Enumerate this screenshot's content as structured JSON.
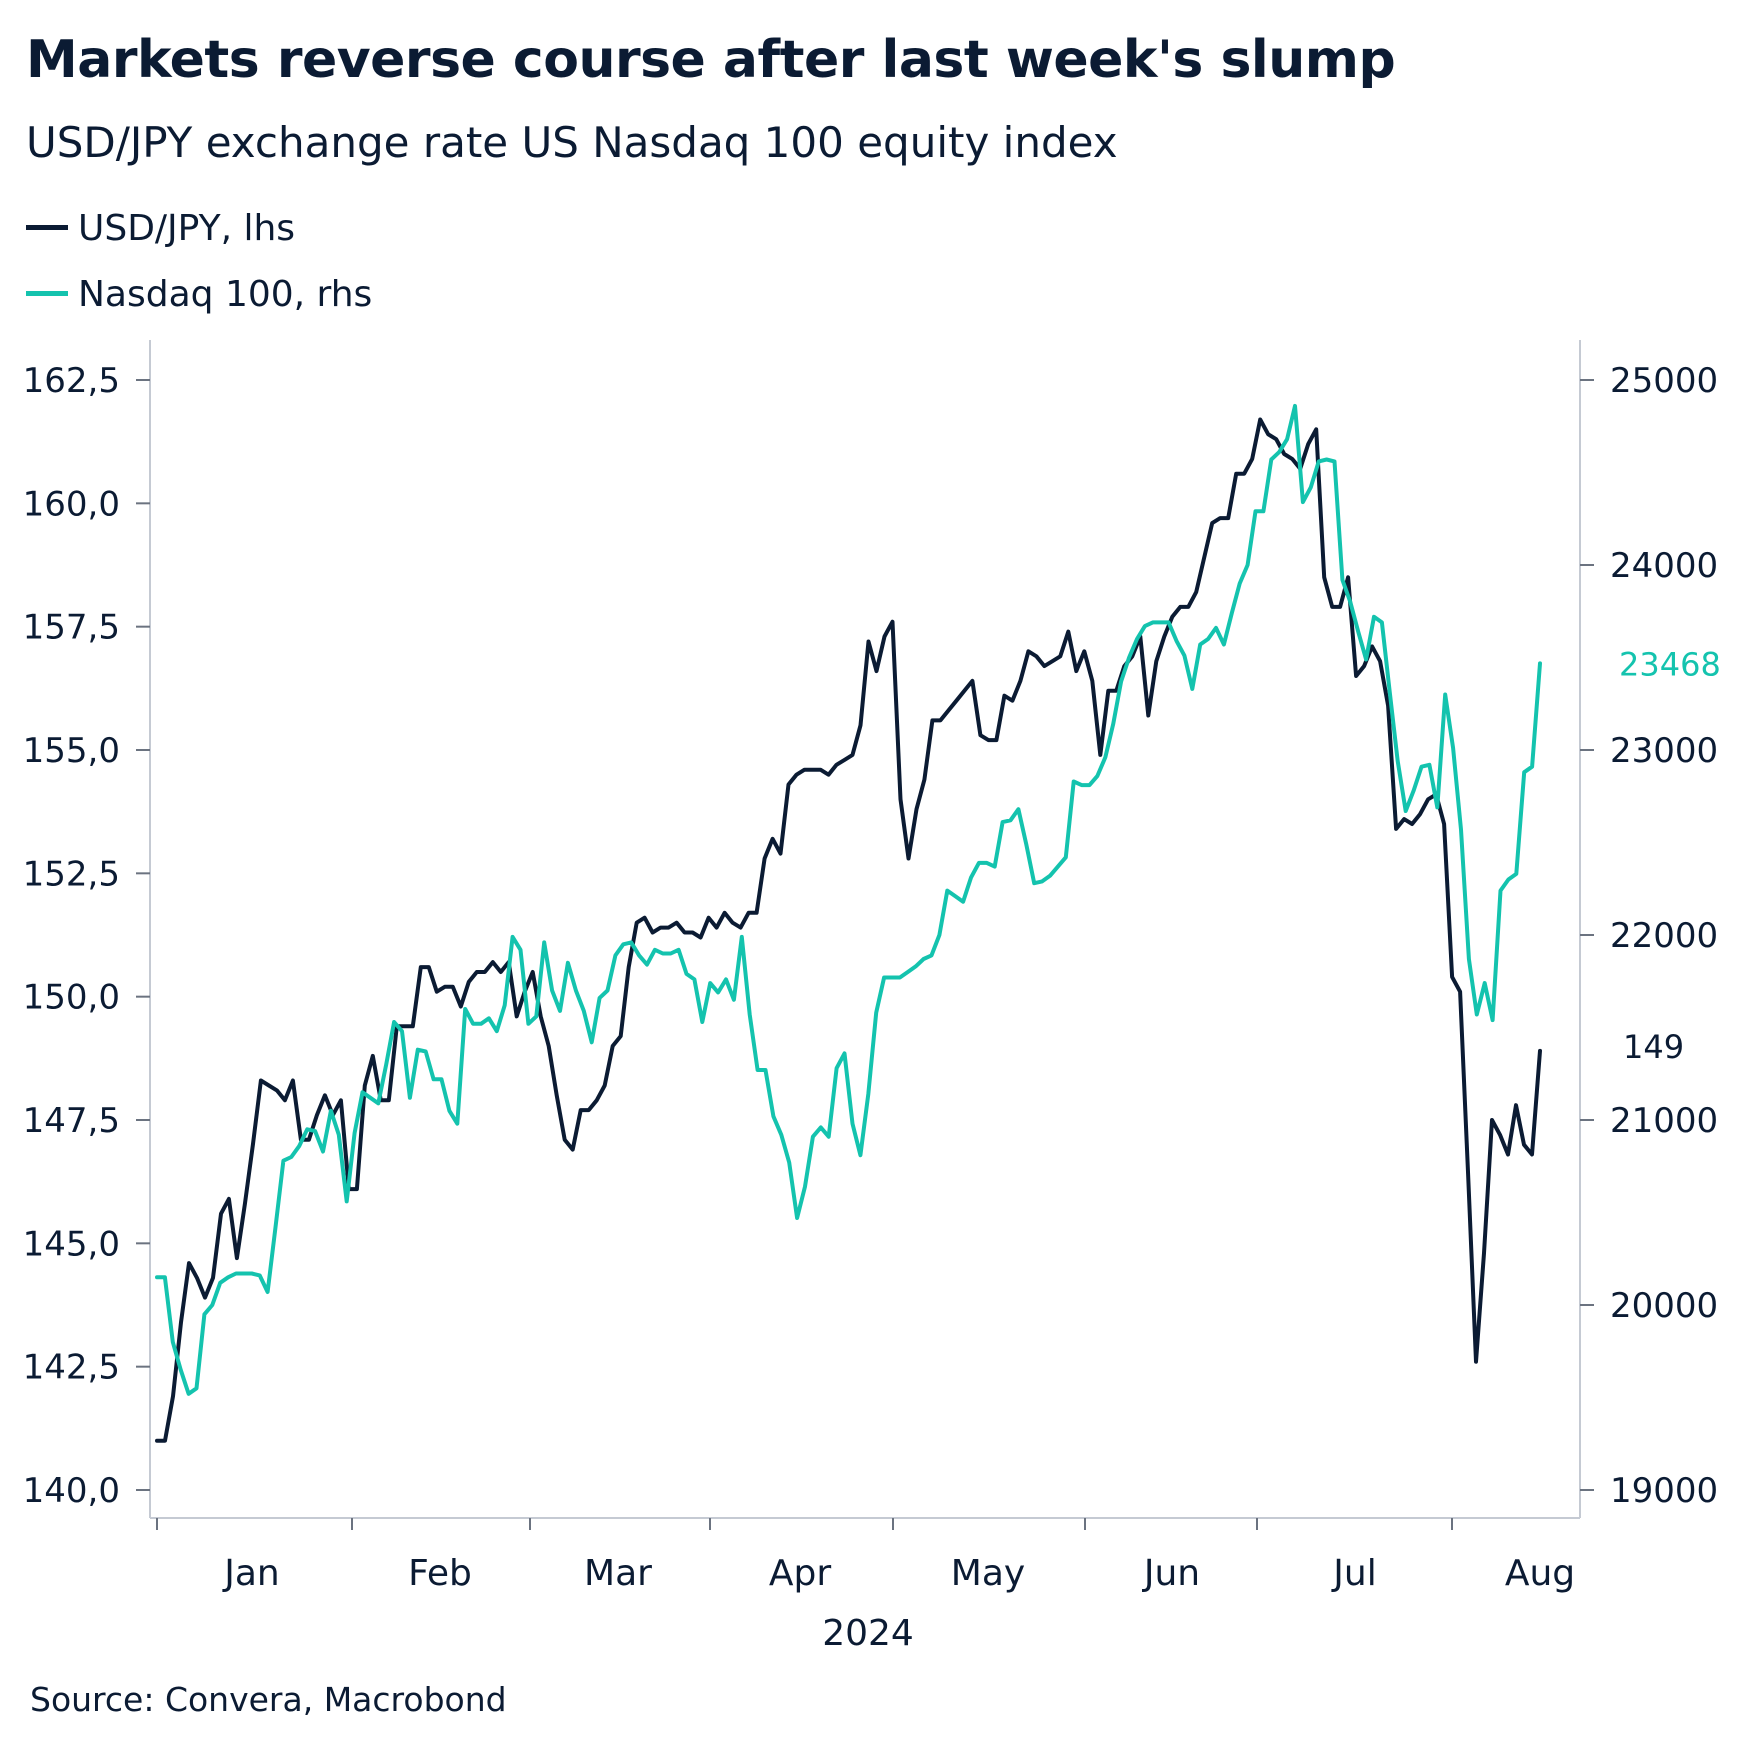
{
  "chart_data": {
    "type": "line",
    "title": "Markets reverse course after last week's slump",
    "subtitle": "USD/JPY exchange rate US Nasdaq 100 equity index",
    "source": "Source: Convera, Macrobond",
    "xlabel": "2024",
    "x_ticks": [
      "Jan",
      "Feb",
      "Mar",
      "Apr",
      "May",
      "Jun",
      "Jul",
      "Aug"
    ],
    "y_left": {
      "lim": [
        140.0,
        162.5
      ],
      "ticks": [
        "140,0",
        "142,5",
        "145,0",
        "147,5",
        "150,0",
        "152,5",
        "155,0",
        "157,5",
        "160,0",
        "162,5"
      ]
    },
    "y_right": {
      "lim": [
        19000,
        25000
      ],
      "ticks": [
        "19000",
        "20000",
        "21000",
        "22000",
        "23000",
        "24000",
        "25000"
      ]
    },
    "series": [
      {
        "name": "USD/JPY, lhs",
        "axis": "left",
        "color": "#0b1b33",
        "last_label": "149",
        "values": [
          141.0,
          141.0,
          141.9,
          143.4,
          144.6,
          144.3,
          143.9,
          144.3,
          145.6,
          145.9,
          144.7,
          145.8,
          147.0,
          148.3,
          148.2,
          148.1,
          147.9,
          148.3,
          147.1,
          147.1,
          147.6,
          148.0,
          147.6,
          147.9,
          146.1,
          146.1,
          148.2,
          148.8,
          147.9,
          147.9,
          149.4,
          149.4,
          149.4,
          150.6,
          150.6,
          150.1,
          150.2,
          150.2,
          149.8,
          150.3,
          150.5,
          150.5,
          150.7,
          150.5,
          150.7,
          149.6,
          150.1,
          150.5,
          149.6,
          149.0,
          148.0,
          147.1,
          146.9,
          147.7,
          147.7,
          147.9,
          148.2,
          149.0,
          149.2,
          150.6,
          151.5,
          151.6,
          151.3,
          151.4,
          151.4,
          151.5,
          151.3,
          151.3,
          151.2,
          151.6,
          151.4,
          151.7,
          151.5,
          151.4,
          151.7,
          151.7,
          152.8,
          153.2,
          152.9,
          154.3,
          154.5,
          154.6,
          154.6,
          154.6,
          154.5,
          154.7,
          154.8,
          154.9,
          155.5,
          157.2,
          156.6,
          157.3,
          157.6,
          154.0,
          152.8,
          153.8,
          154.4,
          155.6,
          155.6,
          155.8,
          156.0,
          156.2,
          156.4,
          155.3,
          155.2,
          155.2,
          156.1,
          156.0,
          156.4,
          157.0,
          156.9,
          156.7,
          156.8,
          156.9,
          157.4,
          156.6,
          157.0,
          156.4,
          154.9,
          156.2,
          156.2,
          156.7,
          156.9,
          157.3,
          155.7,
          156.8,
          157.3,
          157.7,
          157.9,
          157.9,
          158.2,
          158.9,
          159.6,
          159.7,
          159.7,
          160.6,
          160.6,
          160.9,
          161.7,
          161.4,
          161.3,
          161.0,
          160.9,
          160.7,
          161.2,
          161.5,
          158.5,
          157.9,
          157.9,
          158.5,
          156.5,
          156.7,
          157.1,
          156.8,
          155.9,
          153.4,
          153.6,
          153.5,
          153.7,
          154.0,
          154.1,
          153.5,
          150.4,
          150.1,
          146.4,
          142.6,
          144.8,
          147.5,
          147.2,
          146.8,
          147.8,
          147.0,
          146.8,
          148.9
        ]
      },
      {
        "name": "Nasdaq 100, rhs",
        "axis": "right",
        "color": "#14c3ae",
        "last_label": "23468",
        "values": [
          20150,
          20150,
          19800,
          19650,
          19520,
          19550,
          19950,
          20000,
          20120,
          20150,
          20170,
          20170,
          20170,
          20160,
          20070,
          20420,
          20780,
          20800,
          20860,
          20950,
          20940,
          20830,
          21050,
          20920,
          20560,
          20930,
          21150,
          21120,
          21090,
          21300,
          21530,
          21480,
          21120,
          21380,
          21370,
          21220,
          21220,
          21050,
          20980,
          21600,
          21520,
          21520,
          21550,
          21480,
          21620,
          21990,
          21920,
          21520,
          21560,
          21960,
          21700,
          21590,
          21850,
          21700,
          21590,
          21420,
          21660,
          21700,
          21890,
          21950,
          21960,
          21890,
          21840,
          21920,
          21900,
          21900,
          21920,
          21790,
          21760,
          21530,
          21740,
          21690,
          21760,
          21650,
          21990,
          21570,
          21270,
          21270,
          21020,
          20920,
          20770,
          20470,
          20640,
          20910,
          20960,
          20910,
          21280,
          21360,
          20980,
          20810,
          21140,
          21580,
          21770,
          21770,
          21770,
          21800,
          21830,
          21870,
          21890,
          22000,
          22240,
          22210,
          22180,
          22310,
          22390,
          22390,
          22370,
          22610,
          22620,
          22680,
          22490,
          22280,
          22290,
          22320,
          22370,
          22420,
          22830,
          22810,
          22810,
          22860,
          22960,
          23140,
          23370,
          23500,
          23600,
          23670,
          23690,
          23690,
          23690,
          23590,
          23510,
          23330,
          23570,
          23600,
          23660,
          23570,
          23740,
          23900,
          24000,
          24290,
          24290,
          24570,
          24610,
          24680,
          24860,
          24340,
          24420,
          24560,
          24570,
          24560,
          23920,
          23800,
          23640,
          23490,
          23720,
          23690,
          23310,
          22940,
          22670,
          22780,
          22910,
          22920,
          22690,
          23300,
          23010,
          22570,
          21870,
          21570,
          21740,
          21540,
          22240,
          22300,
          22330,
          22880,
          22910,
          23468
        ]
      }
    ]
  }
}
